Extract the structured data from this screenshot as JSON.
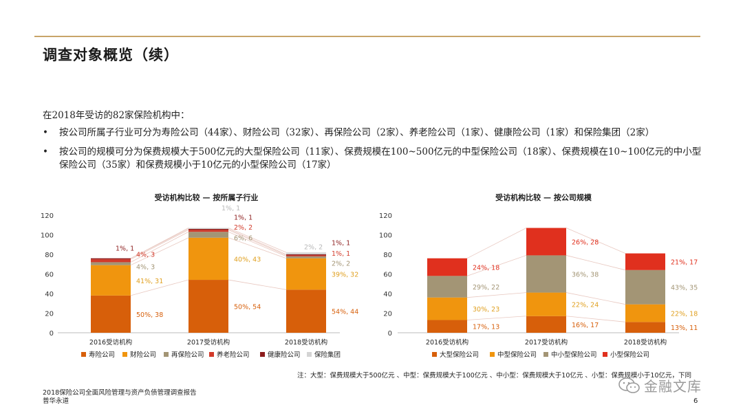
{
  "slide": {
    "title": "调查对象概览（续）",
    "intro": "在2018年受访的82家保险机构中：",
    "bullets": [
      "按公司所属子行业可分为寿险公司（44家）、财险公司（32家）、再保险公司（2家）、养老险公司（1家）、健康险公司（1家）和保险集团（2家）",
      "按公司的规模可分为保费规模大于500亿元的大型保险公司（11家）、保费规模在100~500亿元的中型保险公司（18家）、保费规模在10~100亿元的中小型保险公司（35家）和保费规模小于10亿元的小型保险公司（17家）"
    ],
    "bullet_symbol": "•",
    "note": "注：大型：保费规模大于500亿元 、中型：保费规模大于100亿元 、中小型：保费规模大于10亿元 、小型：保费规模小于10亿元，下同",
    "footer_line1": "2018保险公司全面风险管理与资产负债管理调查报告",
    "footer_line2": "普华永道",
    "page_number": "6",
    "watermark_text": "金融文库",
    "watermark_icon": "wechat-icon"
  },
  "chart_data": [
    {
      "type": "bar",
      "stacked": true,
      "title": "受访机构比较 — 按所属子行业",
      "categories": [
        "2016受访机构",
        "2017受访机构",
        "2018受访机构"
      ],
      "ylim": [
        0,
        120
      ],
      "yticks": [
        0,
        20,
        40,
        60,
        80,
        100,
        120
      ],
      "legend_position": "bottom",
      "series": [
        {
          "name": "寿险公司",
          "color": "#d75f0a",
          "values": [
            38,
            54,
            44
          ],
          "labels": [
            "50%, 38",
            "50%, 54",
            "54%, 44"
          ],
          "label_color": "#d75f0a"
        },
        {
          "name": "财险公司",
          "color": "#f0950e",
          "values": [
            31,
            43,
            32
          ],
          "labels": [
            "41%, 31",
            "40%, 43",
            "39%, 32"
          ],
          "label_color": "#e0a020"
        },
        {
          "name": "再保险公司",
          "color": "#a39575",
          "values": [
            3,
            6,
            2
          ],
          "labels": [
            "4%, 3",
            "6%, 6",
            "2%, 2"
          ],
          "label_color": "#a39575"
        },
        {
          "name": "养老险公司",
          "color": "#d23a2a",
          "values": [
            3,
            2,
            1
          ],
          "labels": [
            "4%, 3",
            "2%, 2",
            "1%, 1"
          ],
          "label_color": "#d23a2a"
        },
        {
          "name": "健康险公司",
          "color": "#8c1d1d",
          "values": [
            1,
            1,
            1
          ],
          "labels": [
            "1%, 1",
            "1%, 1",
            "1%, 1"
          ],
          "label_color": "#8c1d1d"
        },
        {
          "name": "保险集团",
          "color": "#d4d4d4",
          "values": [
            0,
            1,
            2
          ],
          "labels": [
            "",
            "1%, 1",
            "2%, 2"
          ],
          "label_color": "#b8b8b8"
        }
      ]
    },
    {
      "type": "bar",
      "stacked": true,
      "title": "受访机构比较 — 按公司规模",
      "categories": [
        "2016受访机构",
        "2017受访机构",
        "2018受访机构"
      ],
      "ylim": [
        0,
        120
      ],
      "yticks": [
        0,
        20,
        40,
        60,
        80,
        100,
        120
      ],
      "legend_position": "bottom",
      "series": [
        {
          "name": "大型保险公司",
          "color": "#d75f0a",
          "values": [
            13,
            17,
            11
          ],
          "labels": [
            "17%, 13",
            "16%, 17",
            "13%, 11"
          ],
          "label_color": "#d75f0a"
        },
        {
          "name": "中型保险公司",
          "color": "#f0950e",
          "values": [
            23,
            24,
            18
          ],
          "labels": [
            "30%, 23",
            "22%, 24",
            "22%, 18"
          ],
          "label_color": "#e0a020"
        },
        {
          "name": "中小型保险公司",
          "color": "#a39575",
          "values": [
            22,
            38,
            35
          ],
          "labels": [
            "29%, 22",
            "36%, 38",
            "43%, 35"
          ],
          "label_color": "#a39575"
        },
        {
          "name": "小型保险公司",
          "color": "#e0301e",
          "values": [
            18,
            28,
            17
          ],
          "labels": [
            "24%, 18",
            "26%, 28",
            "21%, 17"
          ],
          "label_color": "#e0301e"
        }
      ]
    }
  ]
}
